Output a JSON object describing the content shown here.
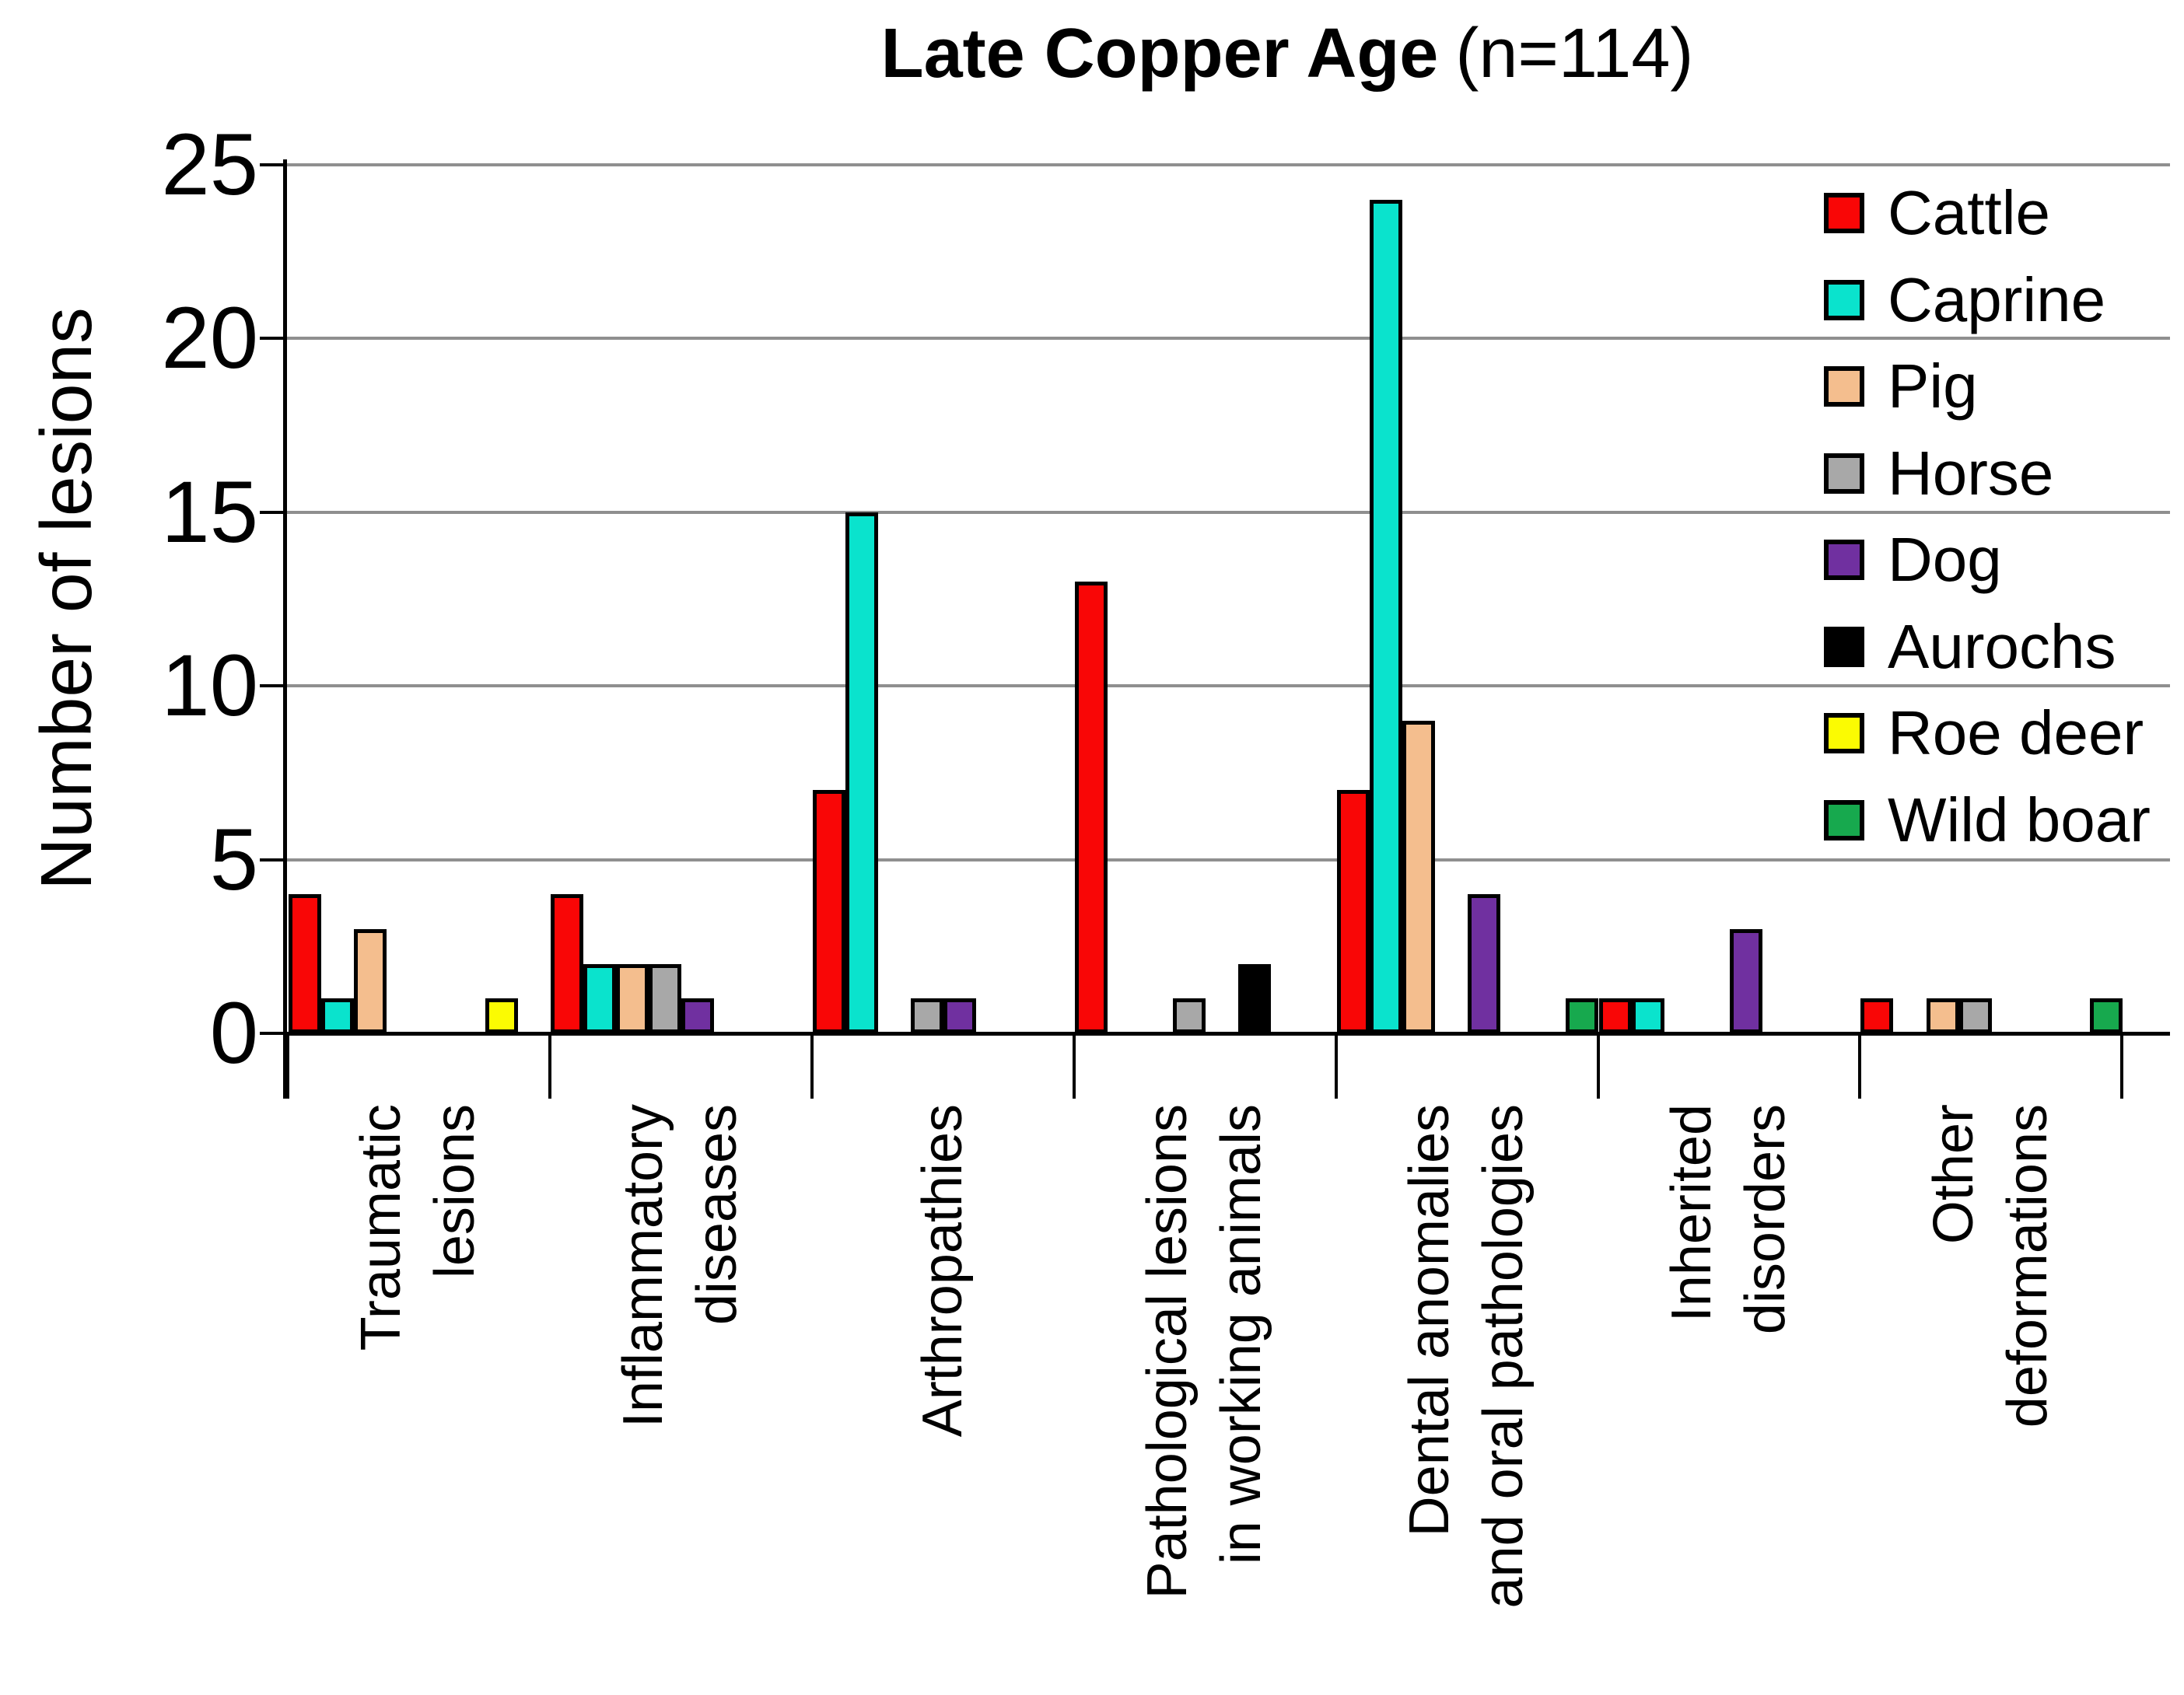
{
  "chart_data": {
    "type": "bar",
    "title": "Late Copper Age",
    "subtitle": "(n=114)",
    "ylabel": "Number of lesions",
    "ylim": [
      0,
      25
    ],
    "yticks": [
      0,
      5,
      10,
      15,
      20,
      25
    ],
    "grid": true,
    "legend_position": "upper-right",
    "categories": [
      "Traumatic lesions",
      "Inflammatory diseases",
      "Arthropathies",
      "Pathological lesions in working animals",
      "Dental anomalies and oral pathologies",
      "Inherited disorders",
      "Other deformations"
    ],
    "category_label_lines": [
      [
        "Traumatic",
        "lesions"
      ],
      [
        "Inflammatory",
        "diseases"
      ],
      [
        "Arthropathies"
      ],
      [
        "Pathological lesions",
        "in working animals"
      ],
      [
        "Dental anomalies",
        "and oral pathologies"
      ],
      [
        "Inherited",
        "disorders"
      ],
      [
        "Other",
        "deformations"
      ]
    ],
    "series": [
      {
        "name": "Cattle",
        "color": "#f90606",
        "values": [
          4,
          4,
          7,
          13,
          7,
          1,
          1
        ]
      },
      {
        "name": "Caprine",
        "color": "#0ae3cd",
        "values": [
          1,
          2,
          15,
          0,
          24,
          1,
          0
        ]
      },
      {
        "name": "Pig",
        "color": "#f4be8e",
        "values": [
          3,
          2,
          0,
          0,
          9,
          0,
          1
        ]
      },
      {
        "name": "Horse",
        "color": "#a8a8a8",
        "values": [
          0,
          2,
          1,
          1,
          0,
          0,
          1
        ]
      },
      {
        "name": "Dog",
        "color": "#7030a0",
        "values": [
          0,
          1,
          1,
          0,
          4,
          3,
          0
        ]
      },
      {
        "name": "Aurochs",
        "color": "#000000",
        "values": [
          0,
          0,
          0,
          2,
          0,
          0,
          0
        ]
      },
      {
        "name": "Roe deer",
        "color": "#fbfb02",
        "values": [
          1,
          0,
          0,
          0,
          0,
          0,
          0
        ]
      },
      {
        "name": "Wild boar",
        "color": "#17a94e",
        "values": [
          0,
          0,
          0,
          0,
          1,
          0,
          1
        ]
      }
    ],
    "axis_color": "#000000",
    "gridline_color": "#8f8f8f",
    "total_n": 114
  }
}
